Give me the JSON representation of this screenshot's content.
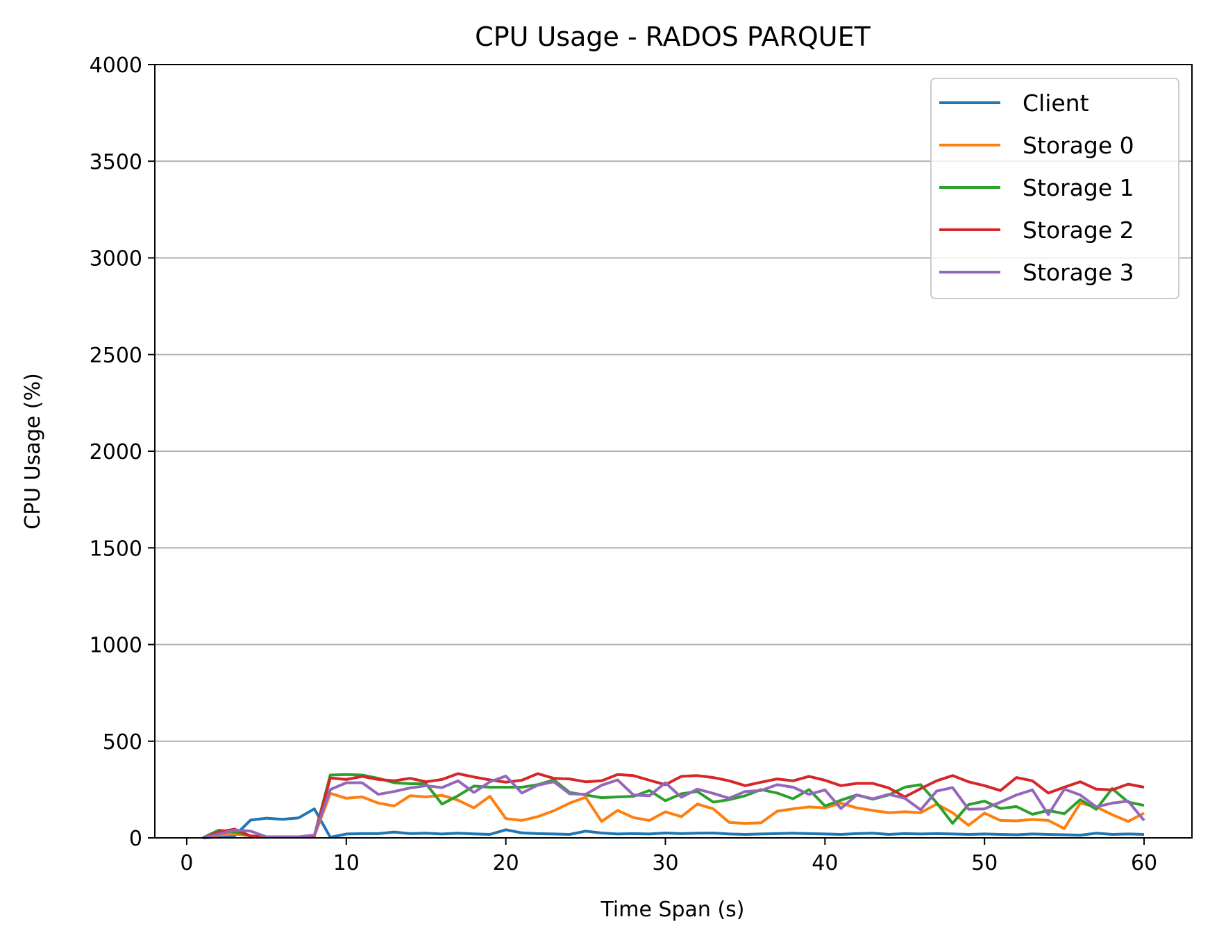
{
  "chart_data": {
    "type": "line",
    "title": "CPU Usage - RADOS PARQUET",
    "xlabel": "Time Span (s)",
    "ylabel": "CPU Usage (%)",
    "xlim": [
      -2,
      63
    ],
    "ylim": [
      0,
      4000
    ],
    "x_ticks": [
      0,
      10,
      20,
      30,
      40,
      50,
      60
    ],
    "y_ticks": [
      0,
      500,
      1000,
      1500,
      2000,
      2500,
      3000,
      3500,
      4000
    ],
    "grid": "horizontal",
    "legend_position": "top-right",
    "x": [
      1,
      2,
      3,
      4,
      5,
      6,
      7,
      8,
      9,
      10,
      11,
      12,
      13,
      14,
      15,
      16,
      17,
      18,
      19,
      20,
      21,
      22,
      23,
      24,
      25,
      26,
      27,
      28,
      29,
      30,
      31,
      32,
      33,
      34,
      35,
      36,
      37,
      38,
      39,
      40,
      41,
      42,
      43,
      44,
      45,
      46,
      47,
      48,
      49,
      50,
      51,
      52,
      53,
      54,
      55,
      56,
      57,
      58,
      59,
      60
    ],
    "series": [
      {
        "name": "Client",
        "color": "#1f77b4",
        "values": [
          0,
          5,
          10,
          92,
          102,
          96,
          103,
          150,
          3,
          20,
          22,
          22,
          30,
          22,
          24,
          20,
          24,
          21,
          18,
          42,
          26,
          22,
          20,
          18,
          35,
          25,
          20,
          22,
          20,
          25,
          22,
          24,
          25,
          20,
          18,
          20,
          22,
          24,
          22,
          20,
          18,
          22,
          24,
          18,
          22,
          20,
          22,
          20,
          18,
          20,
          18,
          16,
          20,
          18,
          16,
          14,
          24,
          18,
          20,
          18
        ]
      },
      {
        "name": "Storage 0",
        "color": "#ff7f0e",
        "values": [
          0,
          15,
          20,
          10,
          5,
          5,
          5,
          10,
          230,
          205,
          212,
          180,
          165,
          218,
          212,
          220,
          195,
          155,
          215,
          100,
          90,
          110,
          140,
          180,
          210,
          85,
          142,
          105,
          90,
          135,
          110,
          175,
          150,
          80,
          75,
          78,
          138,
          150,
          160,
          155,
          180,
          155,
          142,
          130,
          135,
          130,
          175,
          130,
          65,
          128,
          90,
          88,
          95,
          90,
          48,
          180,
          160,
          120,
          85,
          128
        ]
      },
      {
        "name": "Storage 1",
        "color": "#2ca02c",
        "values": [
          0,
          40,
          30,
          10,
          5,
          5,
          5,
          10,
          325,
          328,
          325,
          308,
          285,
          280,
          280,
          175,
          218,
          268,
          262,
          262,
          262,
          275,
          300,
          235,
          222,
          208,
          212,
          215,
          245,
          192,
          228,
          240,
          185,
          198,
          218,
          250,
          232,
          202,
          250,
          165,
          195,
          222,
          200,
          222,
          262,
          275,
          182,
          75,
          172,
          190,
          152,
          162,
          122,
          142,
          125,
          198,
          148,
          255,
          185,
          168
        ]
      },
      {
        "name": "Storage 2",
        "color": "#d62728",
        "values": [
          0,
          30,
          45,
          10,
          5,
          5,
          5,
          10,
          310,
          302,
          318,
          302,
          295,
          308,
          290,
          302,
          332,
          315,
          300,
          288,
          298,
          332,
          308,
          305,
          290,
          295,
          328,
          322,
          298,
          275,
          318,
          322,
          312,
          295,
          270,
          288,
          305,
          295,
          318,
          298,
          270,
          282,
          282,
          258,
          212,
          255,
          295,
          322,
          290,
          270,
          245,
          312,
          295,
          232,
          262,
          290,
          252,
          248,
          278,
          262
        ]
      },
      {
        "name": "Storage 3",
        "color": "#9467bd",
        "values": [
          0,
          20,
          40,
          35,
          5,
          5,
          5,
          15,
          250,
          285,
          285,
          225,
          240,
          258,
          270,
          260,
          295,
          235,
          290,
          320,
          232,
          272,
          290,
          228,
          225,
          272,
          300,
          222,
          218,
          285,
          210,
          252,
          230,
          205,
          240,
          245,
          275,
          262,
          225,
          248,
          152,
          222,
          202,
          225,
          205,
          145,
          242,
          260,
          148,
          150,
          185,
          222,
          248,
          120,
          252,
          222,
          160,
          180,
          190,
          90
        ]
      }
    ]
  }
}
